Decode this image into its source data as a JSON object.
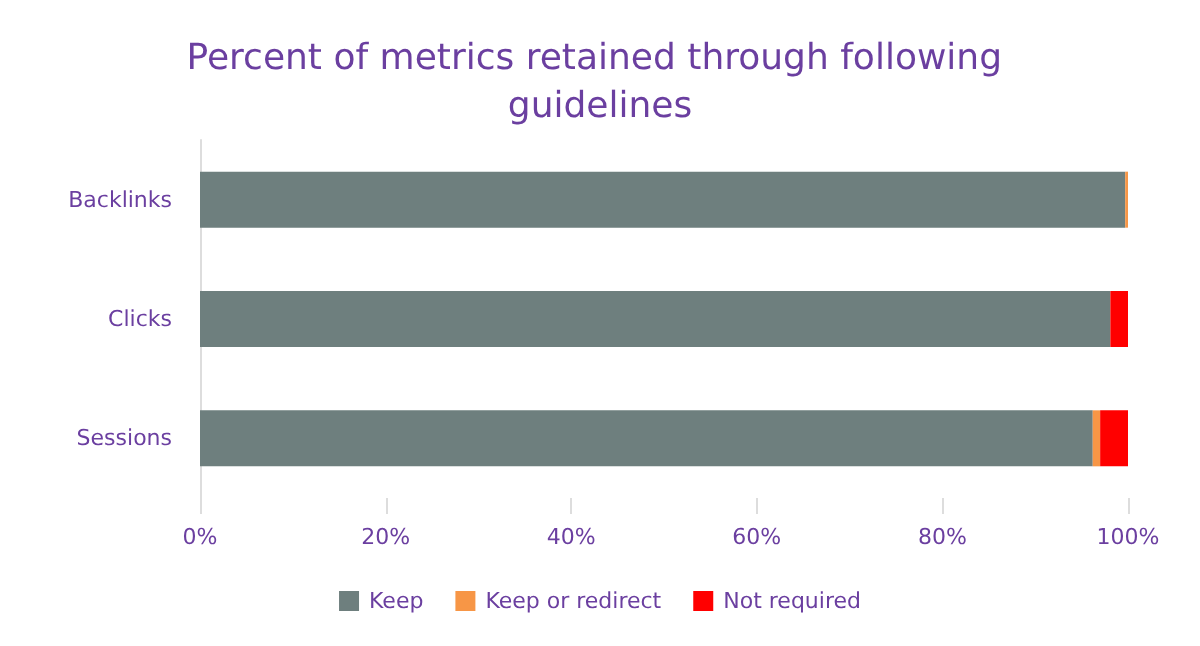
{
  "chart_data": {
    "type": "bar",
    "orientation": "horizontal",
    "stacked": true,
    "title": "Percent of metrics retained through following guidelines",
    "categories": [
      "Backlinks",
      "Clicks",
      "Sessions"
    ],
    "series": [
      {
        "name": "Keep",
        "color": "#6e7f7e",
        "values": [
          99.7,
          98.1,
          96.2
        ]
      },
      {
        "name": "Keep or redirect",
        "color": "#f79646",
        "values": [
          0.3,
          0,
          0.8
        ]
      },
      {
        "name": "Not required",
        "color": "#ff0000",
        "values": [
          0,
          1.9,
          3.0
        ]
      }
    ],
    "xlim": [
      0,
      100
    ],
    "xticks": [
      {
        "value": 0,
        "label": "0%"
      },
      {
        "value": 20,
        "label": "20%"
      },
      {
        "value": 40,
        "label": "40%"
      },
      {
        "value": 60,
        "label": "60%"
      },
      {
        "value": 80,
        "label": "80%"
      },
      {
        "value": 100,
        "label": "100%"
      }
    ],
    "grid": false,
    "legend": "bottom"
  }
}
